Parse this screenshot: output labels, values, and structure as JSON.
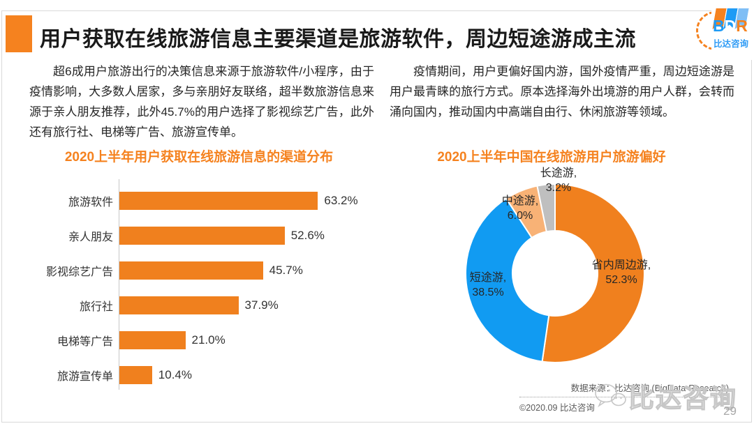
{
  "slide": {
    "title": "用户获取在线旅游信息主要渠道是旅游软件，周边短途游成主流",
    "page_number": "29"
  },
  "logo": {
    "b": "B",
    "d": "D",
    "r": "R",
    "subtext": "比达咨询"
  },
  "paragraphs": {
    "left": "超6成用户旅游出行的决策信息来源于旅游软件/小程序，由于疫情影响，大多数人居家，多与亲朋好友联络，超半数旅游信息来源于亲人朋友推荐，此外45.7%的用户选择了影视综艺广告，此外还有旅行社、电梯等广告、旅游宣传单。",
    "right": "疫情期间，用户更偏好国内游，国外疫情严重，周边短途游是用户最青睐的旅行方式。原本选择海外出境游的用户人群，会转而涌向国内，推动国内中高端自由行、休闲旅游等领域。"
  },
  "chart_data": [
    {
      "type": "bar",
      "orientation": "horizontal",
      "title": "2020上半年用户获取在线旅游信息的渠道分布",
      "categories": [
        "旅游软件",
        "亲人朋友",
        "影视综艺广告",
        "旅行社",
        "电梯等广告",
        "旅游宣传单"
      ],
      "values": [
        63.2,
        52.6,
        45.7,
        37.9,
        21.0,
        10.4
      ],
      "value_labels": [
        "63.2%",
        "52.6%",
        "45.7%",
        "37.9%",
        "21.0%",
        "10.4%"
      ],
      "bar_color": "#f0801e",
      "xlim": [
        0,
        70
      ],
      "grid": false,
      "legend": false
    },
    {
      "type": "pie",
      "donut": true,
      "title": "2020上半年中国在线旅游用户旅游偏好",
      "labels": [
        "省内周边游",
        "短途游",
        "中途游",
        "长途游"
      ],
      "values": [
        52.3,
        38.5,
        6.0,
        3.2
      ],
      "label_lines": [
        [
          "省内周边游,",
          "52.3%"
        ],
        [
          "短途游,",
          "38.5%"
        ],
        [
          "中途游,",
          "6.0%"
        ],
        [
          "长途游,",
          "3.2%"
        ]
      ],
      "colors": [
        "#f0801e",
        "#119bf2",
        "#f8b276",
        "#bfbfbf"
      ],
      "start_angle_deg": 0,
      "direction": "clockwise",
      "legend": false
    }
  ],
  "footer": {
    "source": "数据来源：比达咨询 (BigData-Research)",
    "copyright": "©2020.09 比达咨询",
    "watermark": "比达咨询"
  },
  "colors": {
    "accent_orange": "#f5821f",
    "bar_orange": "#f0801e",
    "donut_blue": "#119bf2",
    "donut_light_orange": "#f8b276",
    "donut_gray": "#bfbfbf",
    "logo_blue": "#1e9bf5"
  }
}
